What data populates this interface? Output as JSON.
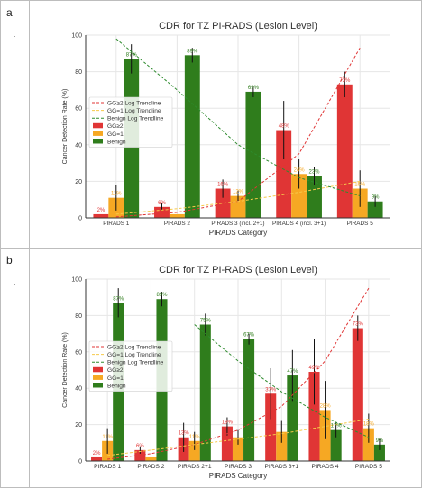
{
  "panels": [
    {
      "letter": "a",
      "dot": "."
    },
    {
      "letter": "b",
      "dot": "."
    }
  ],
  "colors": {
    "gg2": "#e03535",
    "gg1": "#f6a823",
    "benign": "#2f7d1c",
    "trend_gg2": "#e03535",
    "trend_gg1": "#f6c94a",
    "trend_benign": "#2e8b2e",
    "grid": "#e6e6e6"
  },
  "chart_data": [
    {
      "type": "bar",
      "title": "CDR for TZ PI-RADS (Lesion Level)",
      "xlabel": "PIRADS Category",
      "ylabel": "Cancer Detection Rate (%)",
      "ylim": [
        0,
        100
      ],
      "yticks": [
        "0",
        "20",
        "40",
        "60",
        "80",
        "100"
      ],
      "grid": true,
      "legend_position": "center-left",
      "categories": [
        "PIRADS 1",
        "PIRADS 2",
        "PIRADS 3 (incl. 2+1)",
        "PIRADS 4 (incl. 3+1)",
        "PIRADS 5"
      ],
      "series": [
        {
          "name": "GG≥2",
          "values": [
            2,
            6,
            16,
            48,
            73
          ],
          "labels": [
            "2%",
            "6%",
            "16%",
            "48%",
            "73%"
          ],
          "err": [
            0,
            2,
            5,
            16,
            7
          ]
        },
        {
          "name": "GG=1",
          "values": [
            11,
            2,
            12,
            24,
            16
          ],
          "labels": [
            "11%",
            "",
            "12%",
            "24%",
            "16%"
          ],
          "err": [
            7,
            0,
            3,
            8,
            10
          ]
        },
        {
          "name": "Benign",
          "values": [
            87,
            89,
            69,
            23,
            9
          ],
          "labels": [
            "87%",
            "89%",
            "69%",
            "23%",
            "9%"
          ],
          "err": [
            8,
            4,
            3,
            5,
            3
          ]
        }
      ],
      "trendlines": [
        {
          "name": "GG≥2 Log Trendline",
          "values": [
            0.6,
            3,
            9,
            35,
            93
          ]
        },
        {
          "name": "GG=1 Log Trendline",
          "values": [
            2,
            5,
            9,
            14,
            20
          ]
        },
        {
          "name": "Benign Log Trendline",
          "values": [
            98,
            70,
            40,
            22,
            12
          ]
        }
      ]
    },
    {
      "type": "bar",
      "title": "CDR for TZ PI-RADS (Lesion Level)",
      "xlabel": "PIRADS Category",
      "ylabel": "Cancer Detection Rate (%)",
      "ylim": [
        0,
        100
      ],
      "yticks": [
        "0",
        "20",
        "40",
        "60",
        "80",
        "100"
      ],
      "grid": true,
      "legend_position": "center-left",
      "categories": [
        "PIRADS 1",
        "PIRADS 2",
        "PIRADS 2+1",
        "PIRADS 3",
        "PIRADS 3+1",
        "PIRADS 4",
        "PIRADS 5"
      ],
      "series": [
        {
          "name": "GG≥2",
          "values": [
            2,
            6,
            13,
            19,
            37,
            49,
            73
          ],
          "labels": [
            "2%",
            "6%",
            "13%",
            "19%",
            "37%",
            "49%",
            "73%"
          ],
          "err": [
            0,
            2,
            8,
            5,
            14,
            18,
            7
          ]
        },
        {
          "name": "GG=1",
          "values": [
            11,
            2,
            11,
            13,
            16,
            28,
            18
          ],
          "labels": [
            "11%",
            "",
            "11%",
            "",
            "",
            "28%",
            "18%"
          ],
          "err": [
            7,
            0,
            5,
            4,
            6,
            16,
            8
          ]
        },
        {
          "name": "Benign",
          "values": [
            87,
            89,
            75,
            67,
            47,
            17,
            9
          ],
          "labels": [
            "87%",
            "89%",
            "75%",
            "67%",
            "47%",
            "17%",
            "9%"
          ],
          "err": [
            8,
            4,
            6,
            3,
            14,
            4,
            3
          ]
        }
      ],
      "trendlines": [
        {
          "name": "GG≥2 Log Trendline",
          "values": [
            1,
            4,
            9,
            17,
            30,
            55,
            95
          ]
        },
        {
          "name": "GG=1 Log Trendline",
          "values": [
            3,
            6,
            9,
            12,
            15,
            19,
            23
          ]
        },
        {
          "name": "Benign Log Trendline",
          "values": [
            null,
            null,
            75,
            55,
            38,
            24,
            13
          ]
        }
      ]
    }
  ]
}
